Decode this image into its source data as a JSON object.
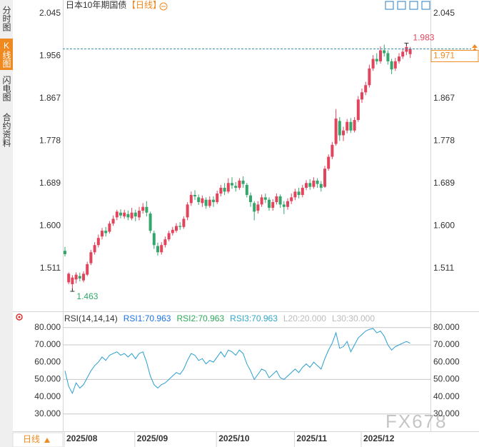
{
  "sidebar": {
    "tabs": [
      "分时图",
      "K线图",
      "闪电图",
      "合约资料"
    ],
    "active": 1
  },
  "footer": {
    "period_button": "日线"
  },
  "watermark": "FX678",
  "chart_data": [
    {
      "type": "candlestick",
      "title": "日本10年期国债",
      "period_label": "【日线】",
      "up_color": "#e2445c",
      "down_color": "#35a66b",
      "last_price_color": "#f0891f",
      "ylim": [
        1.4227,
        2.0734
      ],
      "yticks": [
        {
          "value": 2.045,
          "label": "2.045"
        },
        {
          "value": 1.956,
          "label": "1.956"
        },
        {
          "value": 1.867,
          "label": "1.867"
        },
        {
          "value": 1.778,
          "label": "1.778"
        },
        {
          "value": 1.689,
          "label": "1.689"
        },
        {
          "value": 1.6,
          "label": "1.600"
        },
        {
          "value": 1.511,
          "label": "1.511"
        }
      ],
      "open": [
        1.548,
        1.482,
        1.478,
        1.488,
        1.495,
        1.486,
        1.498,
        1.522,
        1.545,
        1.56,
        1.578,
        1.59,
        1.588,
        1.605,
        1.618,
        1.628,
        1.62,
        1.625,
        1.616,
        1.628,
        1.618,
        1.632,
        1.64,
        1.626,
        1.585,
        1.558,
        1.545,
        1.56,
        1.572,
        1.585,
        1.59,
        1.6,
        1.598,
        1.618,
        1.648,
        1.665,
        1.66,
        1.648,
        1.655,
        1.642,
        1.655,
        1.65,
        1.668,
        1.68,
        1.672,
        1.69,
        1.684,
        1.68,
        1.695,
        1.686,
        1.664,
        1.648,
        1.632,
        1.645,
        1.66,
        1.655,
        1.638,
        1.65,
        1.662,
        1.645,
        1.64,
        1.652,
        1.66,
        1.672,
        1.665,
        1.68,
        1.69,
        1.682,
        1.695,
        1.688,
        1.682,
        1.72,
        1.745,
        1.772,
        1.82,
        1.79,
        1.8,
        1.818,
        1.8,
        1.822,
        1.865,
        1.88,
        1.895,
        1.93,
        1.95,
        1.945,
        1.968,
        1.962,
        1.945,
        1.93,
        1.945,
        1.955,
        1.965,
        1.96
      ],
      "high": [
        1.556,
        1.503,
        1.497,
        1.503,
        1.502,
        1.505,
        1.525,
        1.55,
        1.566,
        1.582,
        1.596,
        1.598,
        1.61,
        1.622,
        1.634,
        1.635,
        1.634,
        1.632,
        1.638,
        1.634,
        1.64,
        1.648,
        1.652,
        1.63,
        1.59,
        1.565,
        1.566,
        1.578,
        1.59,
        1.598,
        1.606,
        1.608,
        1.62,
        1.65,
        1.672,
        1.675,
        1.666,
        1.664,
        1.66,
        1.662,
        1.662,
        1.674,
        1.686,
        1.69,
        1.7,
        1.702,
        1.692,
        1.7,
        1.704,
        1.69,
        1.67,
        1.652,
        1.652,
        1.666,
        1.668,
        1.66,
        1.656,
        1.668,
        1.666,
        1.652,
        1.658,
        1.668,
        1.678,
        1.68,
        1.686,
        1.696,
        1.698,
        1.702,
        1.7,
        1.694,
        1.726,
        1.75,
        1.776,
        1.845,
        1.828,
        1.808,
        1.824,
        1.826,
        1.828,
        1.872,
        1.888,
        1.902,
        1.938,
        1.958,
        1.962,
        1.976,
        1.98,
        1.968,
        1.95,
        1.952,
        1.962,
        1.972,
        1.983,
        1.975
      ],
      "low": [
        1.536,
        1.478,
        1.463,
        1.48,
        1.484,
        1.482,
        1.495,
        1.518,
        1.54,
        1.555,
        1.572,
        1.578,
        1.584,
        1.6,
        1.612,
        1.616,
        1.615,
        1.612,
        1.612,
        1.61,
        1.612,
        1.626,
        1.62,
        1.585,
        1.552,
        1.538,
        1.54,
        1.555,
        1.568,
        1.58,
        1.586,
        1.592,
        1.594,
        1.612,
        1.642,
        1.655,
        1.644,
        1.64,
        1.636,
        1.638,
        1.64,
        1.646,
        1.662,
        1.665,
        1.668,
        1.678,
        1.672,
        1.676,
        1.68,
        1.66,
        1.64,
        1.612,
        1.626,
        1.64,
        1.648,
        1.632,
        1.632,
        1.645,
        1.638,
        1.625,
        1.634,
        1.646,
        1.654,
        1.658,
        1.66,
        1.675,
        1.676,
        1.678,
        1.68,
        1.672,
        1.68,
        1.716,
        1.74,
        1.768,
        1.778,
        1.778,
        1.794,
        1.795,
        1.796,
        1.818,
        1.858,
        1.874,
        1.89,
        1.925,
        1.938,
        1.94,
        1.955,
        1.938,
        1.918,
        1.925,
        1.94,
        1.95,
        1.958,
        1.952
      ],
      "close": [
        1.541,
        1.5,
        1.492,
        1.498,
        1.49,
        1.5,
        1.52,
        1.545,
        1.56,
        1.575,
        1.59,
        1.585,
        1.605,
        1.615,
        1.63,
        1.622,
        1.628,
        1.618,
        1.628,
        1.62,
        1.632,
        1.64,
        1.628,
        1.59,
        1.56,
        1.545,
        1.56,
        1.572,
        1.585,
        1.592,
        1.6,
        1.598,
        1.615,
        1.645,
        1.665,
        1.662,
        1.65,
        1.658,
        1.642,
        1.655,
        1.65,
        1.668,
        1.68,
        1.672,
        1.69,
        1.685,
        1.68,
        1.695,
        1.688,
        1.665,
        1.65,
        1.63,
        1.645,
        1.66,
        1.655,
        1.638,
        1.65,
        1.662,
        1.645,
        1.64,
        1.652,
        1.66,
        1.672,
        1.665,
        1.68,
        1.69,
        1.682,
        1.695,
        1.688,
        1.68,
        1.72,
        1.745,
        1.77,
        1.825,
        1.79,
        1.8,
        1.818,
        1.8,
        1.822,
        1.865,
        1.88,
        1.895,
        1.93,
        1.95,
        1.945,
        1.968,
        1.962,
        1.945,
        1.928,
        1.945,
        1.955,
        1.965,
        1.975,
        1.971
      ]
    },
    {
      "type": "line",
      "categories": [
        "2025/08",
        null,
        null,
        null,
        null,
        null,
        null,
        null,
        null,
        null,
        null,
        null,
        null,
        null,
        null,
        null,
        null,
        null,
        null,
        "2025/09",
        null,
        null,
        null,
        null,
        null,
        null,
        null,
        null,
        null,
        null,
        null,
        null,
        null,
        null,
        null,
        null,
        null,
        null,
        null,
        null,
        null,
        "2025/10",
        null,
        null,
        null,
        null,
        null,
        null,
        null,
        null,
        null,
        null,
        null,
        null,
        null,
        null,
        null,
        null,
        null,
        null,
        null,
        null,
        "2025/11",
        null,
        null,
        null,
        null,
        null,
        null,
        null,
        null,
        null,
        null,
        null,
        null,
        null,
        null,
        null,
        null,
        null,
        "2025/12",
        null,
        null,
        null,
        null,
        null,
        null,
        null,
        null,
        null,
        null,
        null,
        null,
        null
      ],
      "legend": [
        {
          "text": "RSI(14,14,14)",
          "color": "#333333"
        },
        {
          "text": "RSI1:70.963",
          "color": "#1a73e8"
        },
        {
          "text": "RSI2:70.963",
          "color": "#2eaa5a"
        },
        {
          "text": "RSI3:70.963",
          "color": "#2fa9c6"
        },
        {
          "text": "L20:20.000",
          "color": "#bbbbbb"
        },
        {
          "text": "L30:30.000",
          "color": "#bbbbbb"
        }
      ],
      "series": [
        {
          "color": "#2a9fd0",
          "values": [
            55,
            46,
            42,
            48,
            45,
            47,
            51,
            55,
            58,
            60,
            63,
            61,
            64,
            65,
            66,
            64,
            65,
            63,
            65,
            62,
            65,
            66,
            60,
            52,
            47,
            45,
            47,
            48,
            50,
            52,
            54,
            53,
            56,
            61,
            65,
            64,
            61,
            62,
            59,
            61,
            60,
            63,
            66,
            63,
            67,
            66,
            64,
            67,
            65,
            59,
            55,
            50,
            53,
            56,
            55,
            51,
            53,
            55,
            51,
            50,
            52,
            54,
            56,
            54,
            57,
            59,
            57,
            60,
            58,
            56,
            62,
            67,
            71,
            77,
            68,
            69,
            72,
            66,
            70,
            74,
            76,
            78,
            79,
            79.5,
            77,
            78,
            75,
            70,
            67,
            69,
            70,
            71,
            72,
            70.963
          ]
        }
      ],
      "ylim": [
        20,
        89
      ],
      "yticks": [
        {
          "value": 80,
          "label": "80.000"
        },
        {
          "value": 70,
          "label": "70.000"
        },
        {
          "value": 60,
          "label": "60.000"
        },
        {
          "value": 50,
          "label": "50.000"
        },
        {
          "value": 40,
          "label": "40.000"
        },
        {
          "value": 30,
          "label": "30.000"
        }
      ],
      "reference_lines": [
        80,
        70,
        50,
        30
      ]
    }
  ]
}
